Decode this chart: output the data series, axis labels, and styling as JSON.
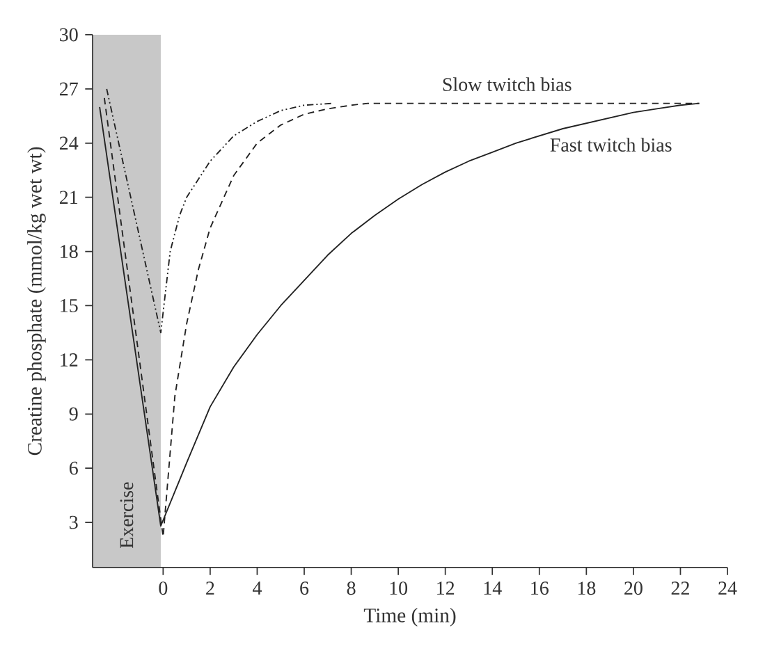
{
  "chart_data": {
    "type": "line",
    "xlabel": "Time (min)",
    "ylabel": "Creatine phosphate (mmol/kg wet wt)",
    "xlim": [
      -3,
      24
    ],
    "ylim": [
      0.5,
      30
    ],
    "xticks": [
      0,
      2,
      4,
      6,
      8,
      10,
      12,
      14,
      16,
      18,
      20,
      22,
      24
    ],
    "yticks": [
      3,
      6,
      9,
      12,
      15,
      18,
      21,
      24,
      27,
      30
    ],
    "grid": false,
    "bands": [
      {
        "axis": "x",
        "from": -3,
        "to": -0.1,
        "label": "Exercise",
        "color": "#c8c8c8"
      }
    ],
    "series": [
      {
        "name": "Fast twitch bias",
        "color": "#222222",
        "line_style": "solid",
        "x": [
          -2.7,
          -0.1,
          1,
          2,
          3,
          4,
          5,
          6,
          7,
          8,
          9,
          10,
          11,
          12,
          13,
          14,
          15,
          16,
          17,
          18,
          19,
          20,
          21,
          22,
          22.8
        ],
        "values": [
          26,
          2.8,
          6.3,
          9.4,
          11.6,
          13.4,
          15.0,
          16.4,
          17.8,
          19.0,
          20.0,
          20.9,
          21.7,
          22.4,
          23.0,
          23.5,
          24.0,
          24.4,
          24.8,
          25.1,
          25.4,
          25.7,
          25.9,
          26.1,
          26.2
        ]
      },
      {
        "name": "Slow twitch bias",
        "color": "#222222",
        "line_style": "dashed",
        "x": [
          -2.5,
          0,
          0.5,
          1,
          1.5,
          2,
          3,
          4,
          5,
          6,
          7,
          8,
          8.7,
          22.8
        ],
        "values": [
          26.5,
          2.2,
          10,
          14,
          17,
          19.3,
          22.2,
          24.0,
          25.0,
          25.6,
          25.9,
          26.1,
          26.2,
          26.2
        ]
      },
      {
        "color": "#222222",
        "line_style": "dashdotted",
        "x": [
          -2.4,
          -0.1,
          0.3,
          0.7,
          1,
          2,
          3,
          4,
          5,
          6,
          7.2
        ],
        "values": [
          27,
          13.5,
          18,
          20,
          21,
          23,
          24.4,
          25.2,
          25.8,
          26.1,
          26.2
        ]
      }
    ]
  }
}
